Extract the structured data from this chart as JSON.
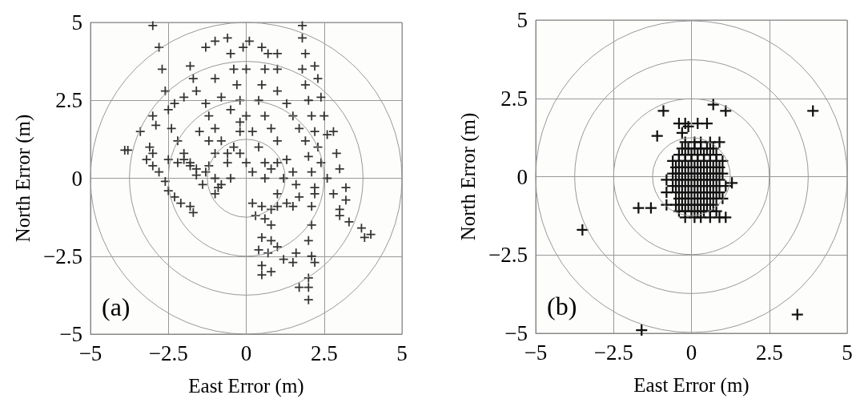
{
  "chart_data": [
    {
      "type": "scatter",
      "xlabel": "East Error (m)",
      "ylabel": "North Error (m)",
      "annotations": [
        "(a)"
      ],
      "color": "#333333",
      "marker": "cross",
      "grid": true,
      "xlim": [
        -5,
        5
      ],
      "ylim": [
        -5,
        5
      ],
      "xticks": [
        -5,
        -2.5,
        0,
        2.5,
        5
      ],
      "yticks": [
        -5,
        -2.5,
        0,
        2.5,
        5
      ],
      "x": [
        -3.0,
        -2.8,
        -2.7,
        -2.6,
        -2.5,
        -2.4,
        -2.2,
        -2.0,
        -1.8,
        -1.6,
        -1.4,
        1.8,
        1.8,
        1.9,
        1.8,
        1.9,
        2.0,
        2.1,
        2.2,
        2.3,
        2.4,
        2.6,
        2.8,
        3.0,
        3.3,
        3.7,
        4.0,
        3.8,
        -3.9,
        -3.8,
        -3.2,
        -3.0,
        -2.8,
        -2.6,
        -2.5,
        -2.3,
        -2.1,
        -1.8,
        -1.7,
        -3.1,
        -3.0,
        -3.0,
        -2.9,
        -2.5,
        -2.2,
        -2.0,
        -1.8,
        -1.6,
        -1.3,
        -1.0,
        -0.9,
        -1.0,
        -1.8,
        -1.7,
        -1.6,
        -1.3,
        -1.2,
        -1.0,
        -0.8,
        -0.6,
        -1.3,
        -1.0,
        -0.6,
        -0.5,
        -0.4,
        -0.3,
        -0.2,
        0.0,
        0.2,
        0.4,
        0.6,
        0.1,
        -0.1,
        0.7,
        0.6,
        0.5,
        0.4,
        0.6,
        0.8,
        1.0,
        1.3,
        1.5,
        1.6,
        1.7,
        -1.0,
        -0.8,
        -0.5,
        -0.2,
        2.2,
        2.3,
        2.4,
        2.5,
        2.6,
        2.8,
        2.9,
        3.0,
        3.2,
        3.2,
        3.0,
        1.0,
        1.3,
        1.5,
        1.7,
        1.9,
        2.0,
        2.1,
        2.2,
        2.1,
        2.1,
        2.0,
        2.1,
        2.2,
        2.0,
        2.0,
        2.0,
        1.7,
        0.2,
        0.5,
        0.8,
        1.0,
        1.3,
        0.3,
        0.6,
        0.8,
        0.5,
        0.4,
        0.5,
        0.5,
        0.8,
        0.7,
        0.8,
        1.0,
        1.2,
        1.5,
        1.6,
        -2.0,
        -2.3,
        -3.4,
        -0.2,
        -0.4,
        -0.6,
        -0.5,
        -0.8,
        0.8,
        0.6,
        0.2,
        0.0,
        -0.2,
        1.0,
        1.2,
        1.0,
        -1.5,
        -1.2,
        -1.0,
        -1.2,
        0.5,
        1.0,
        1.0,
        0.0,
        2.2,
        1.5
      ],
      "values": [
        4.9,
        4.2,
        3.5,
        2.8,
        2.2,
        1.6,
        1.2,
        0.8,
        0.4,
        0.1,
        -0.2,
        4.9,
        4.5,
        4.0,
        3.5,
        3.0,
        2.5,
        2.0,
        1.5,
        1.0,
        0.5,
        0.0,
        -0.5,
        -1.0,
        -1.4,
        -1.6,
        -1.8,
        -1.9,
        0.9,
        0.9,
        0.6,
        0.4,
        0.2,
        -0.1,
        -0.4,
        -0.6,
        -0.8,
        -0.9,
        -1.1,
        1.0,
        0.8,
        2.0,
        1.7,
        0.6,
        0.5,
        0.6,
        0.5,
        0.3,
        0.2,
        0.0,
        -0.3,
        -0.5,
        3.6,
        3.2,
        2.8,
        2.4,
        2.0,
        1.6,
        1.2,
        0.8,
        4.2,
        4.4,
        4.5,
        4.0,
        3.5,
        3.0,
        2.5,
        2.0,
        1.5,
        1.0,
        0.5,
        4.4,
        4.2,
        4.0,
        3.5,
        3.0,
        2.5,
        2.0,
        1.6,
        1.2,
        0.6,
        0.2,
        -0.2,
        -0.6,
        3.2,
        2.6,
        2.2,
        1.8,
        3.6,
        3.2,
        2.6,
        2.0,
        1.4,
        1.5,
        0.8,
        0.3,
        -0.3,
        -0.7,
        -1.2,
        2.8,
        2.4,
        2.0,
        1.6,
        1.2,
        0.7,
        0.2,
        -0.3,
        -0.9,
        -1.5,
        -2.0,
        -2.5,
        -2.7,
        -3.2,
        -3.5,
        -3.9,
        -3.5,
        -0.8,
        -0.9,
        -1.0,
        -0.9,
        -0.8,
        -1.2,
        -1.3,
        -1.5,
        -1.9,
        -2.3,
        -2.8,
        -3.1,
        -3.0,
        -2.4,
        -2.0,
        -2.2,
        -2.6,
        -2.7,
        -2.4,
        2.6,
        2.4,
        1.5,
        1.5,
        1.0,
        0.5,
        0.0,
        -0.2,
        0.3,
        0.0,
        0.2,
        0.5,
        0.8,
        0.5,
        0.0,
        -0.5,
        1.5,
        1.2,
        0.8,
        0.4,
        4.2,
        4.0,
        3.5,
        3.5,
        -0.5,
        -0.9
      ]
    },
    {
      "type": "scatter",
      "xlabel": "East Error (m)",
      "ylabel": "North Error (m)",
      "annotations": [
        "(b)"
      ],
      "color": "#111111",
      "marker": "cross",
      "grid": true,
      "xlim": [
        -5,
        5
      ],
      "ylim": [
        -5,
        5
      ],
      "xticks": [
        -5,
        -2.5,
        0,
        2.5,
        5
      ],
      "yticks": [
        -5,
        -2.5,
        0,
        2.5,
        5
      ],
      "x": [
        -0.2,
        0.1,
        0.3,
        0.6,
        0.9,
        -0.3,
        -0.1,
        0.1,
        0.3,
        0.5,
        0.7,
        -0.4,
        -0.2,
        0.0,
        0.2,
        0.4,
        0.6,
        0.8,
        -0.6,
        -0.4,
        -0.2,
        0.0,
        0.2,
        0.4,
        0.6,
        0.8,
        1.0,
        -0.5,
        -0.3,
        -0.1,
        0.1,
        0.3,
        0.5,
        0.7,
        0.9,
        -0.6,
        -0.4,
        -0.2,
        0.0,
        0.2,
        0.4,
        0.6,
        0.8,
        1.0,
        -0.8,
        -0.5,
        -0.3,
        -0.1,
        0.1,
        0.3,
        0.5,
        0.7,
        0.9,
        -0.6,
        -0.4,
        -0.2,
        0.0,
        0.2,
        0.4,
        0.6,
        0.8,
        1.1,
        -0.8,
        -0.5,
        -0.3,
        -0.1,
        0.1,
        0.3,
        0.5,
        0.7,
        0.9,
        -0.4,
        -0.2,
        0.0,
        0.2,
        0.4,
        0.6,
        0.8,
        1.0,
        -0.8,
        -0.5,
        -0.3,
        -0.1,
        0.1,
        0.3,
        0.5,
        0.7,
        -0.4,
        -0.2,
        0.0,
        0.2,
        0.4,
        0.6,
        0.8,
        -0.2,
        0.1,
        0.3,
        0.6,
        0.9,
        1.1,
        -3.5,
        -1.6,
        3.4,
        3.9,
        0.7,
        1.1,
        -0.9,
        -1.1,
        -1.7,
        -1.3,
        -0.4,
        -0.2,
        0.2,
        0.5,
        -0.1,
        -0.3,
        1.3
      ],
      "values": [
        1.1,
        1.1,
        1.1,
        1.1,
        1.1,
        0.9,
        0.9,
        0.9,
        0.9,
        0.9,
        0.9,
        0.7,
        0.7,
        0.7,
        0.7,
        0.7,
        0.7,
        0.7,
        0.5,
        0.5,
        0.5,
        0.5,
        0.5,
        0.5,
        0.5,
        0.5,
        0.5,
        0.3,
        0.3,
        0.3,
        0.3,
        0.3,
        0.3,
        0.3,
        0.3,
        0.1,
        0.1,
        0.1,
        0.1,
        0.1,
        0.1,
        0.1,
        0.1,
        0.1,
        -0.1,
        -0.1,
        -0.1,
        -0.1,
        -0.1,
        -0.1,
        -0.1,
        -0.1,
        -0.1,
        -0.3,
        -0.3,
        -0.3,
        -0.3,
        -0.3,
        -0.3,
        -0.3,
        -0.3,
        -0.3,
        -0.5,
        -0.5,
        -0.5,
        -0.5,
        -0.5,
        -0.5,
        -0.5,
        -0.5,
        -0.5,
        -0.7,
        -0.7,
        -0.7,
        -0.7,
        -0.7,
        -0.7,
        -0.7,
        -0.7,
        -0.9,
        -0.9,
        -0.9,
        -0.9,
        -0.9,
        -0.9,
        -0.9,
        -0.9,
        -1.1,
        -1.1,
        -1.1,
        -1.1,
        -1.1,
        -1.1,
        -1.1,
        -1.3,
        -1.3,
        -1.3,
        -1.3,
        -1.3,
        -1.3,
        -1.7,
        -4.9,
        -4.4,
        2.1,
        2.3,
        2.1,
        2.1,
        1.3,
        -1.0,
        -1.0,
        1.7,
        1.7,
        1.7,
        1.7,
        1.6,
        1.4,
        -0.2
      ]
    }
  ]
}
